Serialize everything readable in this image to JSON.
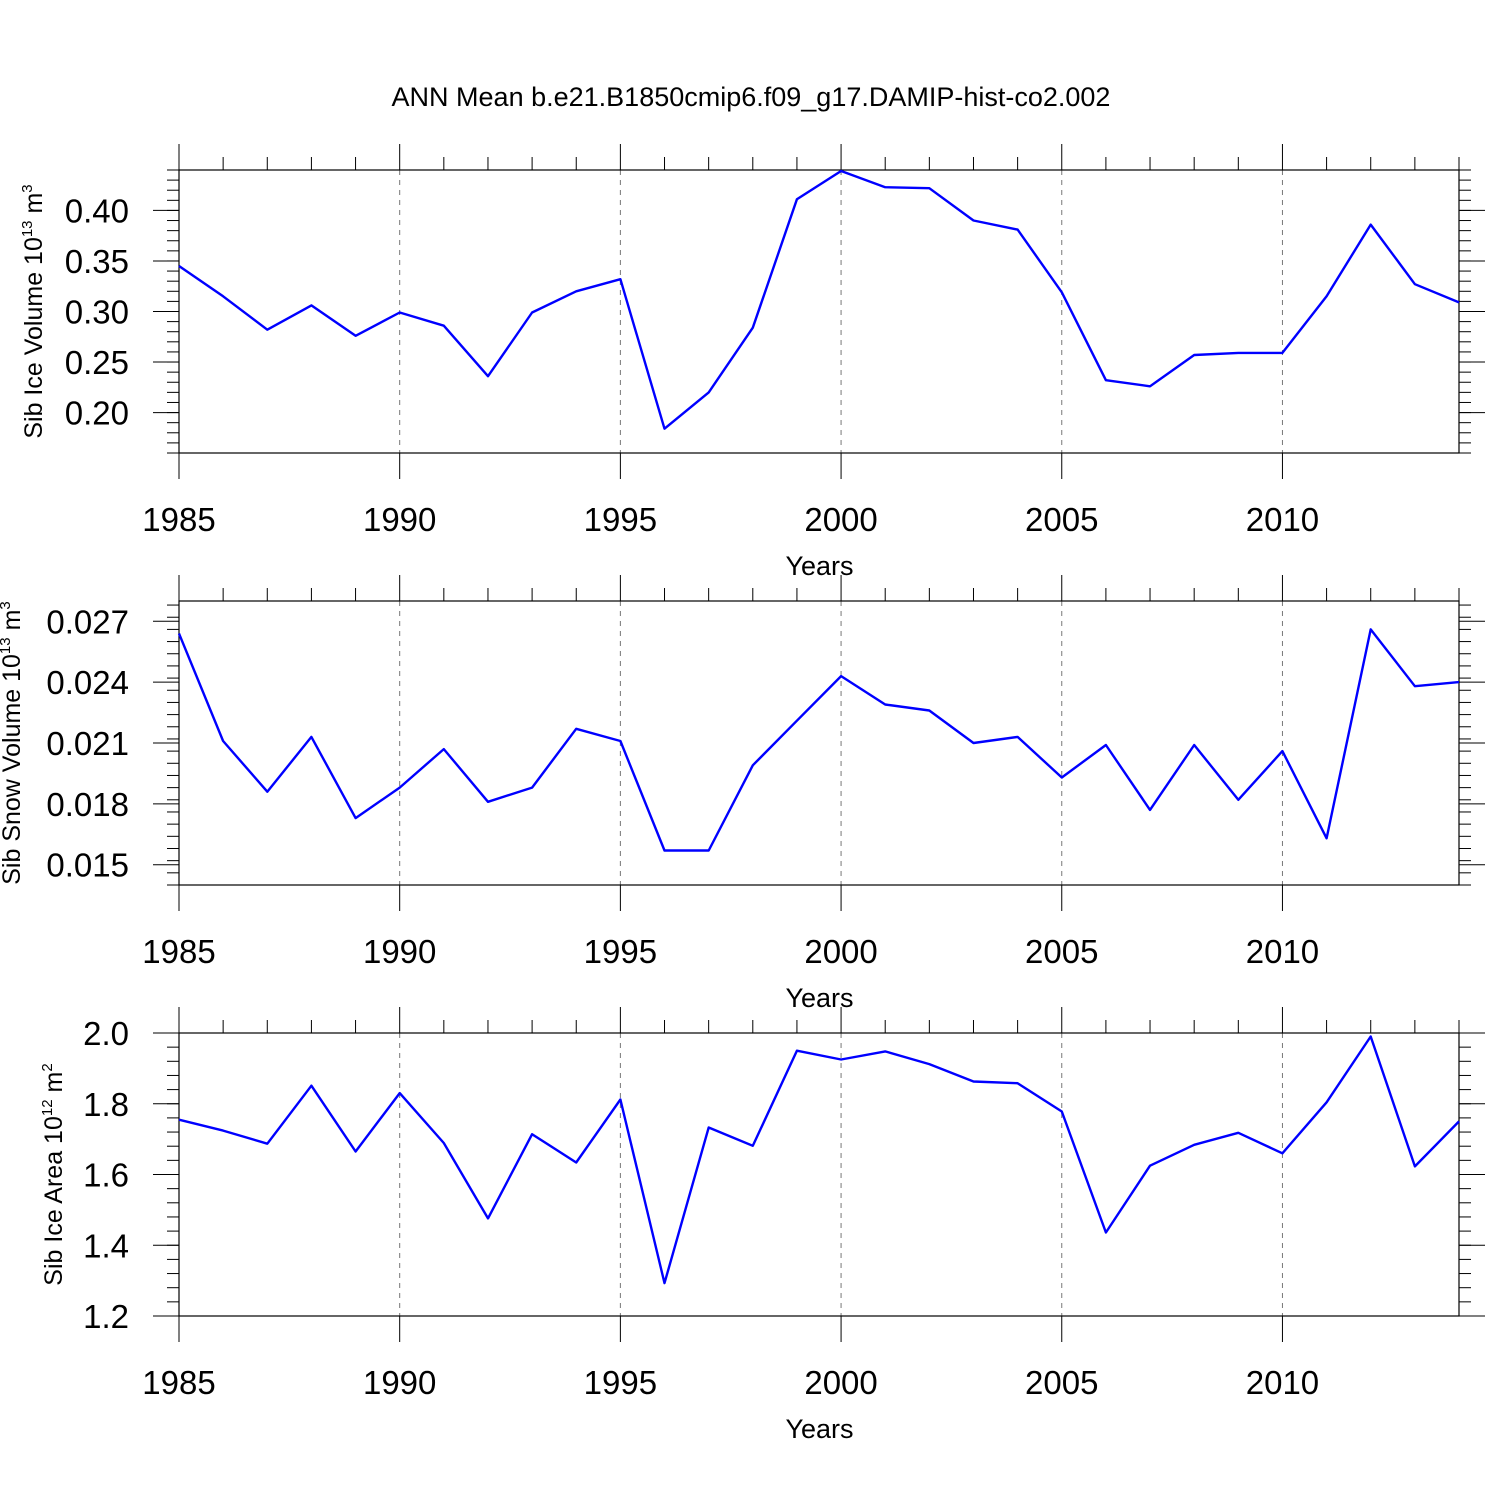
{
  "title": "ANN Mean b.e21.B1850cmip6.f09_g17.DAMIP-hist-co2.002",
  "colors": {
    "line": "#0000ff",
    "axis": "#000000",
    "grid": "#777777"
  },
  "chart_data": [
    {
      "type": "line",
      "name": "sib-ice-volume",
      "ylabel": {
        "text": "Sib Ice Volume 10",
        "exp": "13",
        "unit": " m",
        "unit_exp": "3"
      },
      "xlabel": "Years",
      "xlim": [
        1985,
        2014
      ],
      "ylim": [
        0.16,
        0.44
      ],
      "xticks": [
        1985,
        1990,
        1995,
        2000,
        2005,
        2010
      ],
      "yticks": [
        0.2,
        0.25,
        0.3,
        0.35,
        0.4
      ],
      "ytick_labels": [
        "0.20",
        "0.25",
        "0.30",
        "0.35",
        "0.40"
      ],
      "yminor": 0.01,
      "xticklabels_text": [
        "1985",
        "1990",
        "1995",
        "2000",
        "2005",
        "2010"
      ],
      "x": [
        1985,
        1986,
        1987,
        1988,
        1989,
        1990,
        1991,
        1992,
        1993,
        1994,
        1995,
        1996,
        1997,
        1998,
        1999,
        2000,
        2001,
        2002,
        2003,
        2004,
        2005,
        2006,
        2007,
        2008,
        2009,
        2010,
        2011,
        2012,
        2013,
        2014
      ],
      "values": [
        0.345,
        0.315,
        0.282,
        0.306,
        0.276,
        0.299,
        0.286,
        0.236,
        0.299,
        0.32,
        0.332,
        0.184,
        0.22,
        0.284,
        0.411,
        0.439,
        0.423,
        0.422,
        0.39,
        0.381,
        0.319,
        0.232,
        0.226,
        0.257,
        0.259,
        0.259,
        0.315,
        0.386,
        0.327,
        0.309
      ]
    },
    {
      "type": "line",
      "name": "sib-snow-volume",
      "ylabel": {
        "text": "Sib Snow Volume 10",
        "exp": "13",
        "unit": " m",
        "unit_exp": "3"
      },
      "xlabel": "Years",
      "xlim": [
        1985,
        2014
      ],
      "ylim": [
        0.014,
        0.028
      ],
      "xticks": [
        1985,
        1990,
        1995,
        2000,
        2005,
        2010
      ],
      "yticks": [
        0.015,
        0.018,
        0.021,
        0.024,
        0.027
      ],
      "ytick_labels": [
        "0.015",
        "0.018",
        "0.021",
        "0.024",
        "0.027"
      ],
      "yminor": 0.0006,
      "xticklabels_text": [
        "1985",
        "1990",
        "1995",
        "2000",
        "2005",
        "2010"
      ],
      "x": [
        1985,
        1986,
        1987,
        1988,
        1989,
        1990,
        1991,
        1992,
        1993,
        1994,
        1995,
        1996,
        1997,
        1998,
        1999,
        2000,
        2001,
        2002,
        2003,
        2004,
        2005,
        2006,
        2007,
        2008,
        2009,
        2010,
        2011,
        2012,
        2013,
        2014
      ],
      "values": [
        0.0264,
        0.0211,
        0.0186,
        0.0213,
        0.0173,
        0.0188,
        0.0207,
        0.0181,
        0.0188,
        0.0217,
        0.0211,
        0.0157,
        0.0157,
        0.0199,
        0.0221,
        0.0243,
        0.0229,
        0.0226,
        0.021,
        0.0213,
        0.0193,
        0.0209,
        0.0177,
        0.0209,
        0.0182,
        0.0206,
        0.0163,
        0.0266,
        0.0238,
        0.024
      ]
    },
    {
      "type": "line",
      "name": "sib-ice-area",
      "ylabel": {
        "text": "Sib Ice Area 10",
        "exp": "12",
        "unit": " m",
        "unit_exp": "2"
      },
      "xlabel": "Years",
      "xlim": [
        1985,
        2014
      ],
      "ylim": [
        1.2,
        2.0
      ],
      "xticks": [
        1985,
        1990,
        1995,
        2000,
        2005,
        2010
      ],
      "yticks": [
        1.2,
        1.4,
        1.6,
        1.8,
        2.0
      ],
      "ytick_labels": [
        "1.2",
        "1.4",
        "1.6",
        "1.8",
        "2.0"
      ],
      "yminor": 0.04,
      "xticklabels_text": [
        "1985",
        "1990",
        "1995",
        "2000",
        "2005",
        "2010"
      ],
      "x": [
        1985,
        1986,
        1987,
        1988,
        1989,
        1990,
        1991,
        1992,
        1993,
        1994,
        1995,
        1996,
        1997,
        1998,
        1999,
        2000,
        2001,
        2002,
        2003,
        2004,
        2005,
        2006,
        2007,
        2008,
        2009,
        2010,
        2011,
        2012,
        2013,
        2014
      ],
      "values": [
        1.755,
        1.724,
        1.687,
        1.851,
        1.665,
        1.83,
        1.689,
        1.476,
        1.714,
        1.634,
        1.812,
        1.293,
        1.733,
        1.681,
        1.95,
        1.925,
        1.948,
        1.912,
        1.863,
        1.858,
        1.778,
        1.436,
        1.625,
        1.684,
        1.718,
        1.66,
        1.804,
        1.99,
        1.623,
        1.75
      ]
    }
  ]
}
